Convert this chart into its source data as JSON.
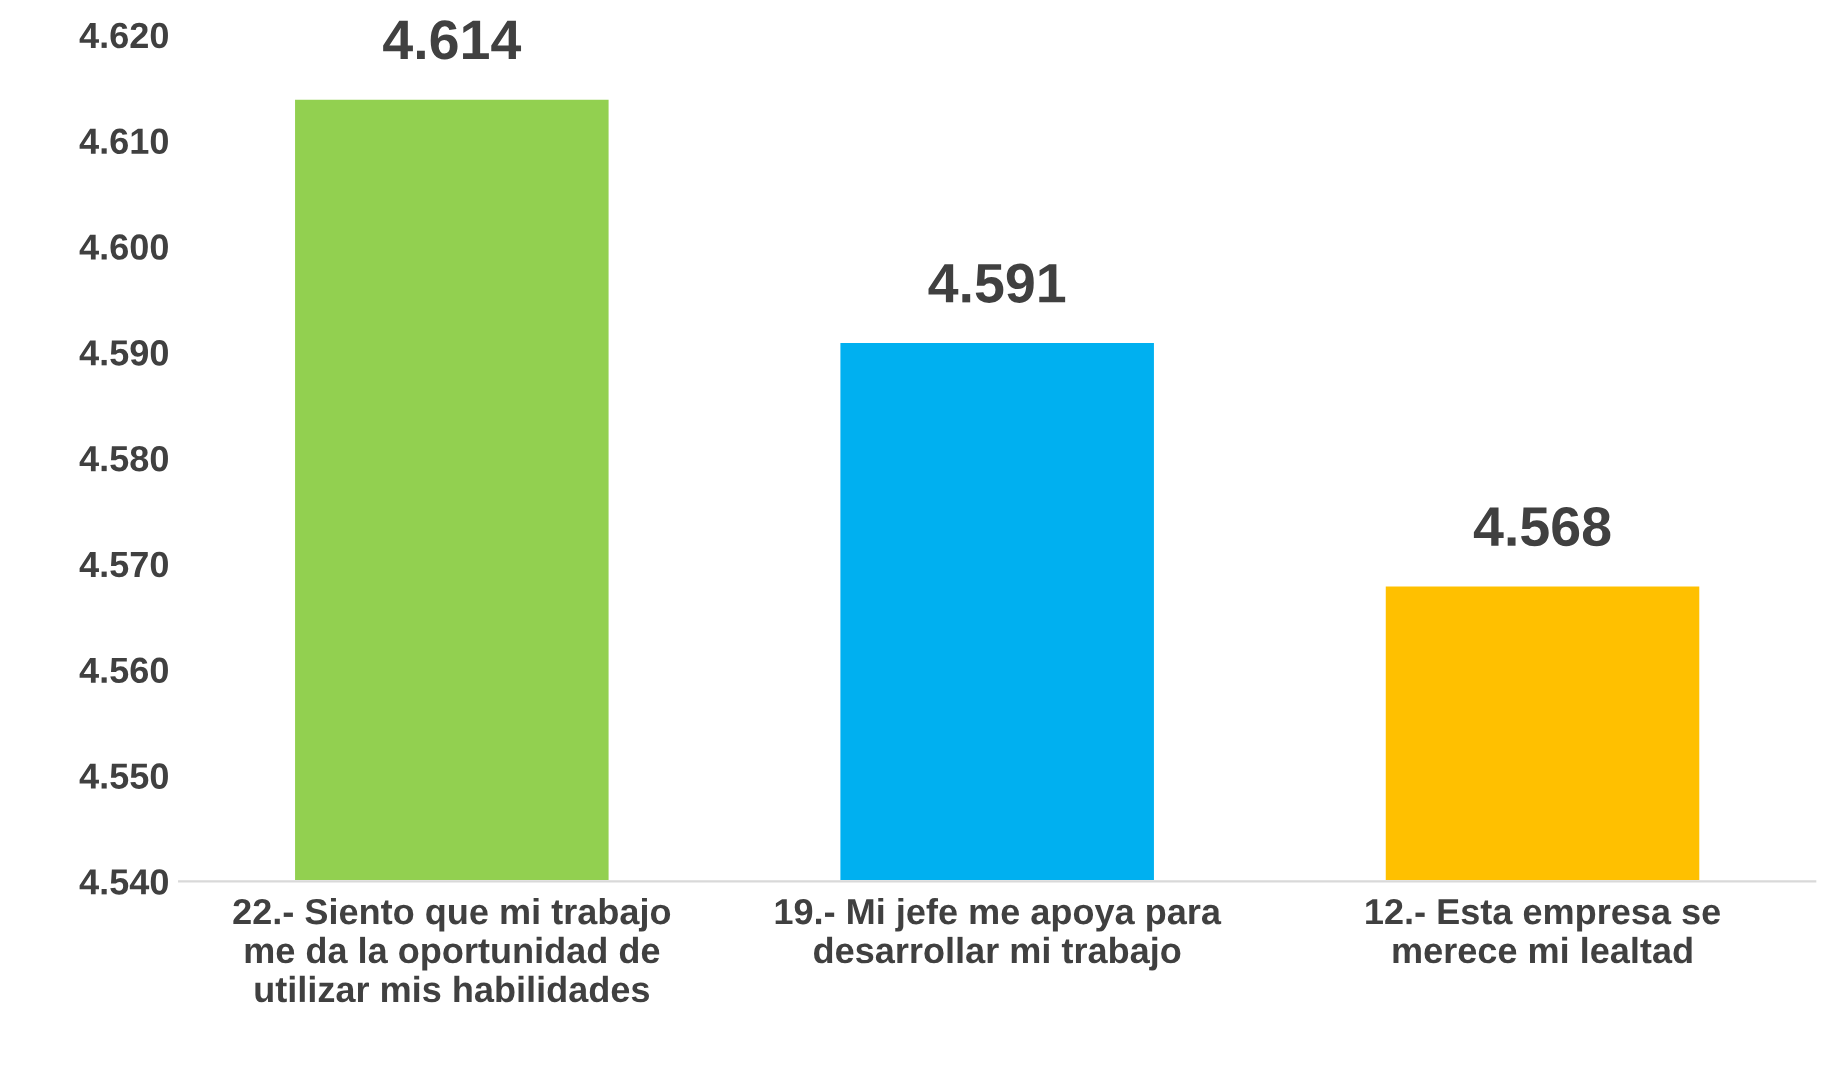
{
  "chart_data": {
    "type": "bar",
    "categories": [
      "22.- Siento que mi trabajo\nme da la oportunidad de\nutilizar mis habilidades",
      "19.- Mi jefe me apoya para\ndesarrollar mi trabajo",
      "12.- Esta empresa se\nmerece mi lealtad"
    ],
    "values": [
      4.614,
      4.591,
      4.568
    ],
    "colors": [
      "#92d050",
      "#00b0f0",
      "#ffc000"
    ],
    "ylim": [
      4.54,
      4.62
    ],
    "yticks": [
      {
        "value": 4.54,
        "label": "4.540"
      },
      {
        "value": 4.55,
        "label": "4.550"
      },
      {
        "value": 4.56,
        "label": "4.560"
      },
      {
        "value": 4.57,
        "label": "4.570"
      },
      {
        "value": 4.58,
        "label": "4.580"
      },
      {
        "value": 4.59,
        "label": "4.590"
      },
      {
        "value": 4.6,
        "label": "4.600"
      },
      {
        "value": 4.61,
        "label": "4.610"
      },
      {
        "value": 4.62,
        "label": "4.620"
      }
    ],
    "data_labels": true,
    "grid": false,
    "legend": false
  }
}
